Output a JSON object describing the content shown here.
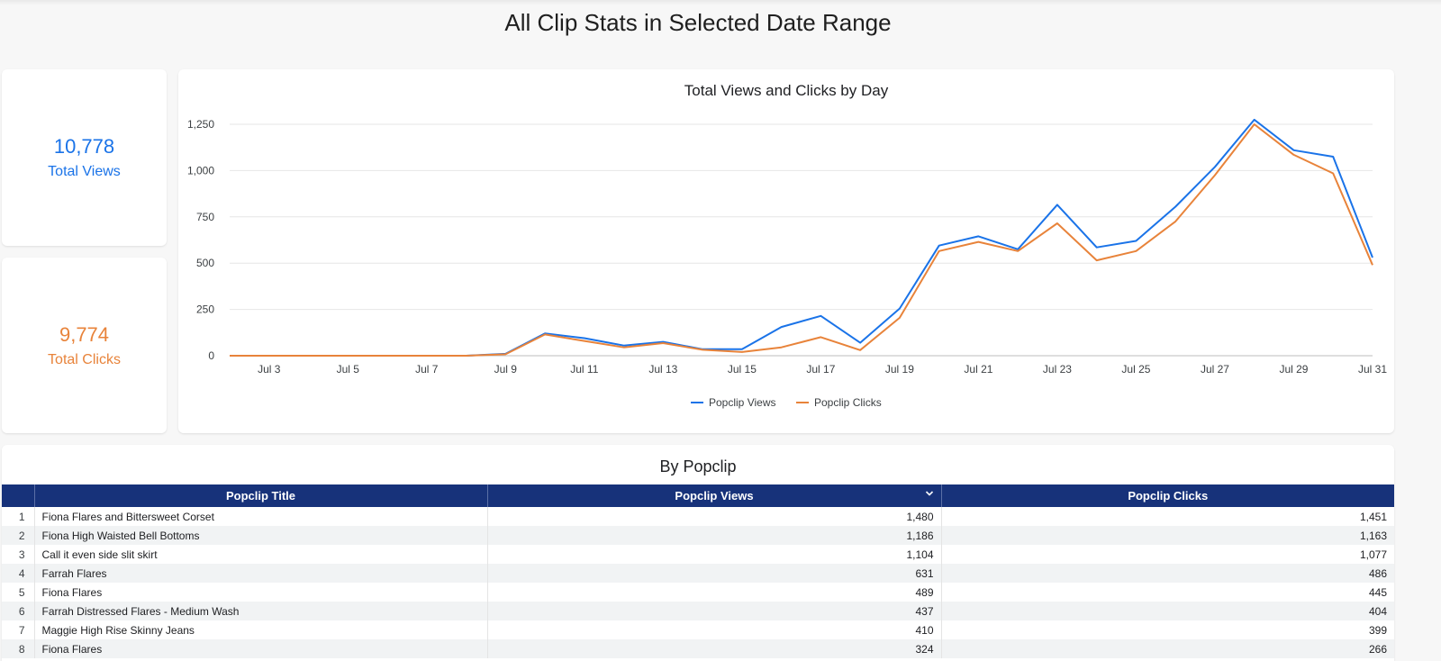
{
  "page": {
    "title": "All Clip Stats in Selected Date Range"
  },
  "kpis": {
    "views": {
      "value": "10,778",
      "label": "Total Views",
      "color": "#1a73e8"
    },
    "clicks": {
      "value": "9,774",
      "label": "Total Clicks",
      "color": "#e8833a"
    }
  },
  "chart_data": {
    "type": "line",
    "title": "Total Views and Clicks by Day",
    "xlabel": "",
    "ylabel": "",
    "ylim": [
      0,
      1250
    ],
    "y_ticks": [
      0,
      250,
      500,
      750,
      1000,
      1250
    ],
    "y_tick_labels": [
      "0",
      "250",
      "500",
      "750",
      "1,000",
      "1,250"
    ],
    "x": [
      "Jul 2",
      "Jul 3",
      "Jul 4",
      "Jul 5",
      "Jul 6",
      "Jul 7",
      "Jul 8",
      "Jul 9",
      "Jul 10",
      "Jul 11",
      "Jul 12",
      "Jul 13",
      "Jul 14",
      "Jul 15",
      "Jul 16",
      "Jul 17",
      "Jul 18",
      "Jul 19",
      "Jul 20",
      "Jul 21",
      "Jul 22",
      "Jul 23",
      "Jul 24",
      "Jul 25",
      "Jul 26",
      "Jul 27",
      "Jul 28",
      "Jul 29",
      "Jul 30",
      "Jul 31"
    ],
    "x_tick_labels": [
      "Jul 3",
      "Jul 5",
      "Jul 7",
      "Jul 9",
      "Jul 11",
      "Jul 13",
      "Jul 15",
      "Jul 17",
      "Jul 19",
      "Jul 21",
      "Jul 23",
      "Jul 25",
      "Jul 27",
      "Jul 29",
      "Jul 31"
    ],
    "series": [
      {
        "name": "Popclip Views",
        "color": "#1a73e8",
        "values": [
          0,
          0,
          0,
          0,
          0,
          0,
          0,
          10,
          120,
          95,
          55,
          75,
          35,
          35,
          155,
          215,
          70,
          255,
          595,
          645,
          575,
          815,
          585,
          620,
          805,
          1020,
          1275,
          1110,
          1075,
          530
        ]
      },
      {
        "name": "Popclip Clicks",
        "color": "#e8833a",
        "values": [
          0,
          0,
          0,
          0,
          0,
          0,
          0,
          8,
          115,
          80,
          45,
          68,
          32,
          20,
          45,
          100,
          30,
          205,
          565,
          615,
          565,
          715,
          515,
          565,
          725,
          975,
          1250,
          1085,
          985,
          490
        ]
      }
    ],
    "grid": true,
    "legend_position": "bottom"
  },
  "table": {
    "title": "By Popclip",
    "headers": [
      "Popclip Title",
      "Popclip Views",
      "Popclip Clicks"
    ],
    "rows": [
      {
        "idx": "1",
        "title": "Fiona Flares and Bittersweet Corset",
        "views": "1,480",
        "clicks": "1,451"
      },
      {
        "idx": "2",
        "title": "Fiona High Waisted Bell Bottoms",
        "views": "1,186",
        "clicks": "1,163"
      },
      {
        "idx": "3",
        "title": "Call it even side slit skirt",
        "views": "1,104",
        "clicks": "1,077"
      },
      {
        "idx": "4",
        "title": "Farrah Flares",
        "views": "631",
        "clicks": "486"
      },
      {
        "idx": "5",
        "title": "Fiona Flares",
        "views": "489",
        "clicks": "445"
      },
      {
        "idx": "6",
        "title": "Farrah Distressed Flares - Medium Wash",
        "views": "437",
        "clicks": "404"
      },
      {
        "idx": "7",
        "title": "Maggie High Rise Skinny Jeans",
        "views": "410",
        "clicks": "399"
      },
      {
        "idx": "8",
        "title": "Fiona Flares",
        "views": "324",
        "clicks": "266"
      }
    ]
  }
}
